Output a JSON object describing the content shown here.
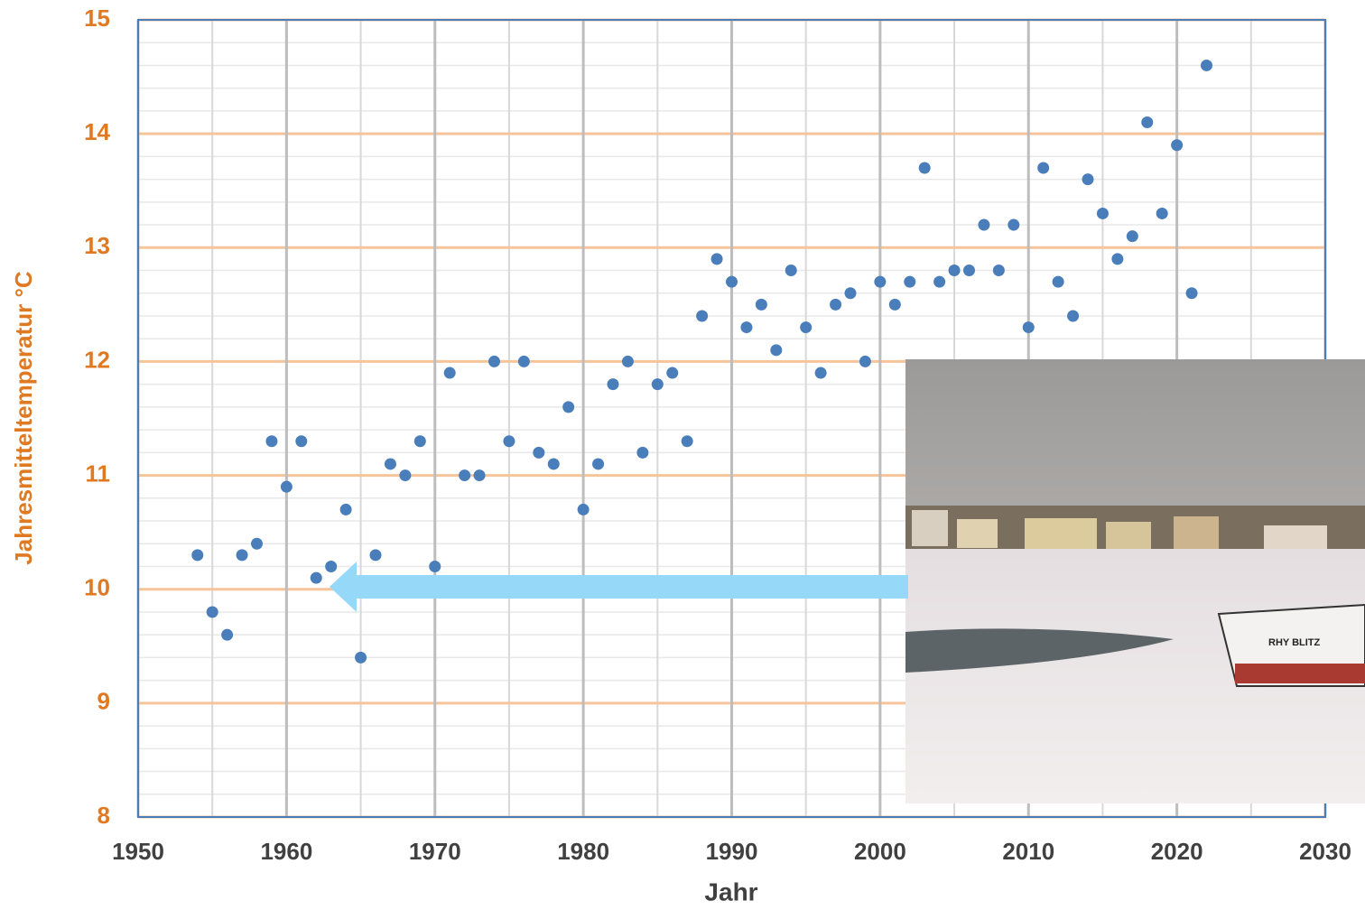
{
  "chart_data": {
    "type": "scatter",
    "x_label": "Jahr",
    "y_label": "Jahresmitteltemperatur °C",
    "x": [
      1954,
      1955,
      1956,
      1957,
      1958,
      1959,
      1960,
      1961,
      1962,
      1963,
      1964,
      1965,
      1966,
      1967,
      1968,
      1969,
      1970,
      1971,
      1972,
      1973,
      1974,
      1975,
      1976,
      1977,
      1978,
      1979,
      1980,
      1981,
      1982,
      1983,
      1984,
      1985,
      1986,
      1987,
      1988,
      1989,
      1990,
      1991,
      1992,
      1993,
      1994,
      1995,
      1996,
      1997,
      1998,
      1999,
      2000,
      2001,
      2002,
      2003,
      2004,
      2005,
      2006,
      2007,
      2008,
      2009,
      2010,
      2011,
      2012,
      2013,
      2014,
      2015,
      2016,
      2017,
      2018,
      2019,
      2020,
      2021,
      2022
    ],
    "values": [
      10.3,
      9.8,
      9.6,
      10.3,
      10.4,
      11.3,
      10.9,
      11.3,
      10.1,
      10.2,
      10.7,
      9.4,
      10.3,
      11.1,
      11.0,
      11.3,
      10.2,
      11.9,
      11.0,
      11.0,
      12.0,
      11.3,
      12.0,
      11.2,
      11.1,
      11.6,
      10.7,
      11.1,
      11.8,
      12.0,
      11.2,
      11.8,
      11.9,
      11.3,
      12.4,
      12.9,
      12.7,
      12.3,
      12.5,
      12.1,
      12.8,
      12.3,
      11.9,
      12.5,
      12.6,
      12.0,
      12.7,
      12.5,
      12.7,
      13.7,
      12.7,
      12.8,
      12.8,
      13.2,
      12.8,
      13.2,
      12.3,
      13.7,
      12.7,
      12.4,
      13.6,
      13.3,
      12.9,
      13.1,
      14.1,
      13.3,
      13.9,
      12.6,
      14.6
    ],
    "color": "#4a7ebb",
    "xlim": [
      1950,
      2030
    ],
    "xticks": [
      1950,
      1960,
      1970,
      1980,
      1990,
      2000,
      2010,
      2020,
      2030
    ],
    "ylim": [
      8,
      15
    ],
    "yticks": [
      8,
      9,
      10,
      11,
      12,
      13,
      14,
      15
    ],
    "grid": true
  }
}
